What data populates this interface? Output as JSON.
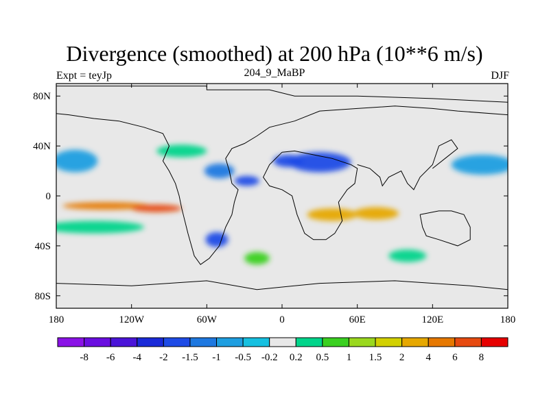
{
  "chart_data": {
    "type": "heatmap",
    "title": "Divergence (smoothed) at 200 hPa (10**6 m/s)",
    "left_string": "Expt = teyJp",
    "center_string": "204_9_MaBP",
    "right_string": "DJF",
    "x_range": [
      -180,
      180
    ],
    "y_range": [
      -90,
      90
    ],
    "x_ticks": [
      {
        "value": -180,
        "label": "180"
      },
      {
        "value": -120,
        "label": "120W"
      },
      {
        "value": -60,
        "label": "60W"
      },
      {
        "value": 0,
        "label": "0"
      },
      {
        "value": 60,
        "label": "60E"
      },
      {
        "value": 120,
        "label": "120E"
      },
      {
        "value": 180,
        "label": "180"
      }
    ],
    "y_ticks": [
      {
        "value": 80,
        "label": "80N"
      },
      {
        "value": 40,
        "label": "40N"
      },
      {
        "value": 0,
        "label": "0"
      },
      {
        "value": -40,
        "label": "40S"
      },
      {
        "value": -80,
        "label": "80S"
      }
    ],
    "colorbar": {
      "labels": [
        "-8",
        "-6",
        "-4",
        "-2",
        "-1.5",
        "-1",
        "-0.5",
        "-0.2",
        "0.2",
        "0.5",
        "1",
        "1.5",
        "2",
        "4",
        "6",
        "8"
      ],
      "colors": [
        "#8a12e6",
        "#6a0ee0",
        "#4a14d8",
        "#1a2ad8",
        "#1e4be6",
        "#1e78e0",
        "#1e9ee0",
        "#16c0e0",
        "#e8e8e8",
        "#00d48a",
        "#3ad020",
        "#9ad81e",
        "#d2d000",
        "#e6a800",
        "#e67800",
        "#e64a10",
        "#e60000"
      ]
    },
    "field_blobs": [
      {
        "lon": -165,
        "lat": 28,
        "rx": 18,
        "ry": 9,
        "level": 6
      },
      {
        "lon": 160,
        "lat": 25,
        "rx": 25,
        "ry": 8,
        "level": 6
      },
      {
        "lon": 30,
        "lat": 27,
        "rx": 25,
        "ry": 8,
        "level": 4
      },
      {
        "lon": 5,
        "lat": 28,
        "rx": 12,
        "ry": 5,
        "level": 4
      },
      {
        "lon": -50,
        "lat": 20,
        "rx": 12,
        "ry": 6,
        "level": 5
      },
      {
        "lon": -28,
        "lat": 12,
        "rx": 10,
        "ry": 4,
        "level": 4
      },
      {
        "lon": -52,
        "lat": -35,
        "rx": 9,
        "ry": 6,
        "level": 4
      },
      {
        "lon": 40,
        "lat": -15,
        "rx": 20,
        "ry": 5,
        "level": 13
      },
      {
        "lon": 75,
        "lat": -14,
        "rx": 18,
        "ry": 5,
        "level": 13
      },
      {
        "lon": -140,
        "lat": -8,
        "rx": 35,
        "ry": 3,
        "level": 14
      },
      {
        "lon": -100,
        "lat": -10,
        "rx": 20,
        "ry": 3,
        "level": 15
      },
      {
        "lon": -80,
        "lat": 36,
        "rx": 20,
        "ry": 5,
        "level": 9
      },
      {
        "lon": -150,
        "lat": -25,
        "rx": 40,
        "ry": 5,
        "level": 9
      },
      {
        "lon": -20,
        "lat": -50,
        "rx": 10,
        "ry": 5,
        "level": 10
      },
      {
        "lon": 100,
        "lat": -48,
        "rx": 15,
        "ry": 5,
        "level": 9
      }
    ],
    "continent_outlines": [
      [
        [
          -180,
          88
        ],
        [
          -60,
          88
        ],
        [
          -60,
          85
        ],
        [
          -10,
          85
        ],
        [
          10,
          80
        ],
        [
          60,
          80
        ],
        [
          120,
          78
        ],
        [
          180,
          75
        ],
        [
          180,
          65
        ],
        [
          140,
          68
        ],
        [
          120,
          70
        ],
        [
          90,
          72
        ],
        [
          60,
          70
        ],
        [
          30,
          68
        ],
        [
          10,
          60
        ],
        [
          -10,
          55
        ],
        [
          -20,
          48
        ],
        [
          -30,
          42
        ],
        [
          -40,
          38
        ],
        [
          -45,
          30
        ],
        [
          -42,
          20
        ],
        [
          -40,
          10
        ],
        [
          -35,
          5
        ],
        [
          -38,
          -5
        ],
        [
          -40,
          -15
        ],
        [
          -45,
          -25
        ],
        [
          -50,
          -40
        ],
        [
          -58,
          -50
        ],
        [
          -65,
          -55
        ],
        [
          -70,
          -48
        ],
        [
          -75,
          -30
        ],
        [
          -80,
          -10
        ],
        [
          -82,
          0
        ],
        [
          -85,
          10
        ],
        [
          -90,
          20
        ],
        [
          -95,
          28
        ],
        [
          -90,
          40
        ],
        [
          -95,
          50
        ],
        [
          -110,
          55
        ],
        [
          -130,
          60
        ],
        [
          -150,
          62
        ],
        [
          -170,
          65
        ],
        [
          -180,
          66
        ]
      ],
      [
        [
          0,
          35
        ],
        [
          10,
          36
        ],
        [
          30,
          32
        ],
        [
          40,
          30
        ],
        [
          55,
          25
        ],
        [
          60,
          22
        ],
        [
          58,
          10
        ],
        [
          52,
          5
        ],
        [
          45,
          -5
        ],
        [
          48,
          -20
        ],
        [
          42,
          -30
        ],
        [
          35,
          -35
        ],
        [
          25,
          -35
        ],
        [
          18,
          -30
        ],
        [
          12,
          -15
        ],
        [
          8,
          0
        ],
        [
          0,
          5
        ],
        [
          -10,
          8
        ],
        [
          -15,
          15
        ],
        [
          -10,
          25
        ],
        [
          0,
          35
        ]
      ],
      [
        [
          60,
          25
        ],
        [
          70,
          22
        ],
        [
          78,
          15
        ],
        [
          80,
          8
        ],
        [
          85,
          15
        ],
        [
          95,
          20
        ],
        [
          100,
          10
        ],
        [
          105,
          5
        ],
        [
          110,
          15
        ],
        [
          120,
          25
        ],
        [
          125,
          40
        ],
        [
          135,
          45
        ],
        [
          140,
          38
        ],
        [
          130,
          30
        ],
        [
          120,
          22
        ]
      ],
      [
        [
          110,
          -15
        ],
        [
          125,
          -12
        ],
        [
          135,
          -12
        ],
        [
          145,
          -15
        ],
        [
          150,
          -25
        ],
        [
          150,
          -35
        ],
        [
          140,
          -40
        ],
        [
          125,
          -35
        ],
        [
          115,
          -32
        ],
        [
          112,
          -25
        ],
        [
          110,
          -15
        ]
      ],
      [
        [
          -180,
          -70
        ],
        [
          -120,
          -72
        ],
        [
          -60,
          -68
        ],
        [
          -20,
          -75
        ],
        [
          30,
          -70
        ],
        [
          90,
          -68
        ],
        [
          150,
          -72
        ],
        [
          180,
          -75
        ]
      ]
    ]
  }
}
